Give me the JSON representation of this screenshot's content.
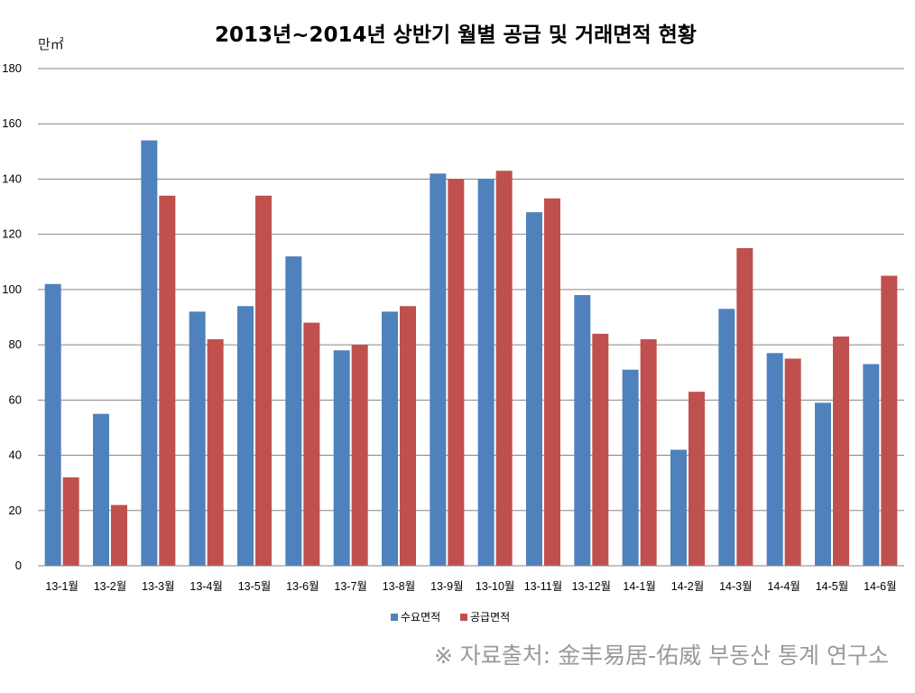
{
  "chart_data": {
    "type": "bar",
    "title": "2013년~2014년 상반기 월별 공급 및 거래면적 현황",
    "unit_label": "만㎡",
    "categories": [
      "13-1월",
      "13-2월",
      "13-3월",
      "13-4월",
      "13-5월",
      "13-6월",
      "13-7월",
      "13-8월",
      "13-9월",
      "13-10월",
      "13-11월",
      "13-12월",
      "14-1월",
      "14-2월",
      "14-3월",
      "14-4월",
      "14-5월",
      "14-6월"
    ],
    "series": [
      {
        "name": "수요면적",
        "color": "#4f81bd",
        "values": [
          102,
          55,
          154,
          92,
          94,
          112,
          78,
          92,
          142,
          140,
          128,
          98,
          71,
          42,
          93,
          77,
          59,
          73
        ]
      },
      {
        "name": "공급면적",
        "color": "#c0504d",
        "values": [
          32,
          22,
          134,
          82,
          134,
          88,
          80,
          94,
          140,
          143,
          133,
          84,
          82,
          63,
          115,
          75,
          83,
          105
        ]
      }
    ],
    "ylim": [
      0,
      180
    ],
    "yticks": [
      0,
      20,
      40,
      60,
      80,
      100,
      120,
      140,
      160,
      180
    ],
    "grid": true,
    "legend_position": "bottom-center",
    "xlabel": "",
    "ylabel": ""
  },
  "source_note": "※ 자료출처: 金丰易居-佑威 부동산 통계 연구소"
}
